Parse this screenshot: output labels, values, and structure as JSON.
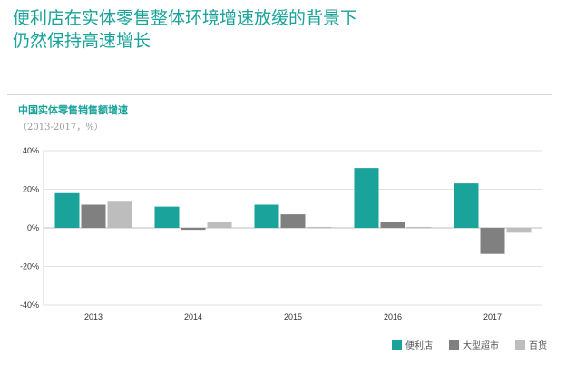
{
  "headline": {
    "line1": "便利店在实体零售整体环境增速放缓的背景下",
    "line2": "仍然保持高速增长"
  },
  "chart_data": {
    "type": "bar",
    "title": "中国实体零售销售额增速",
    "subtitle": "（2013-2017，%）",
    "categories": [
      "2013",
      "2014",
      "2015",
      "2016",
      "2017"
    ],
    "series": [
      {
        "name": "便利店",
        "color": "#1aa39a",
        "values": [
          18,
          11,
          12,
          31,
          23
        ]
      },
      {
        "name": "大型超市",
        "color": "#808080",
        "values": [
          12,
          -1,
          7,
          3,
          -13.5
        ]
      },
      {
        "name": "百货",
        "color": "#bdbdbd",
        "values": [
          14,
          3,
          0.5,
          0.5,
          -2.5
        ]
      }
    ],
    "yticks": [
      40,
      20,
      0,
      -20,
      -40
    ],
    "ytick_labels": [
      "40%",
      "20%",
      "0%",
      "-20%",
      "-40%"
    ],
    "ylim": [
      -40,
      40
    ],
    "grid": true,
    "legend_position": "bottom-right"
  }
}
